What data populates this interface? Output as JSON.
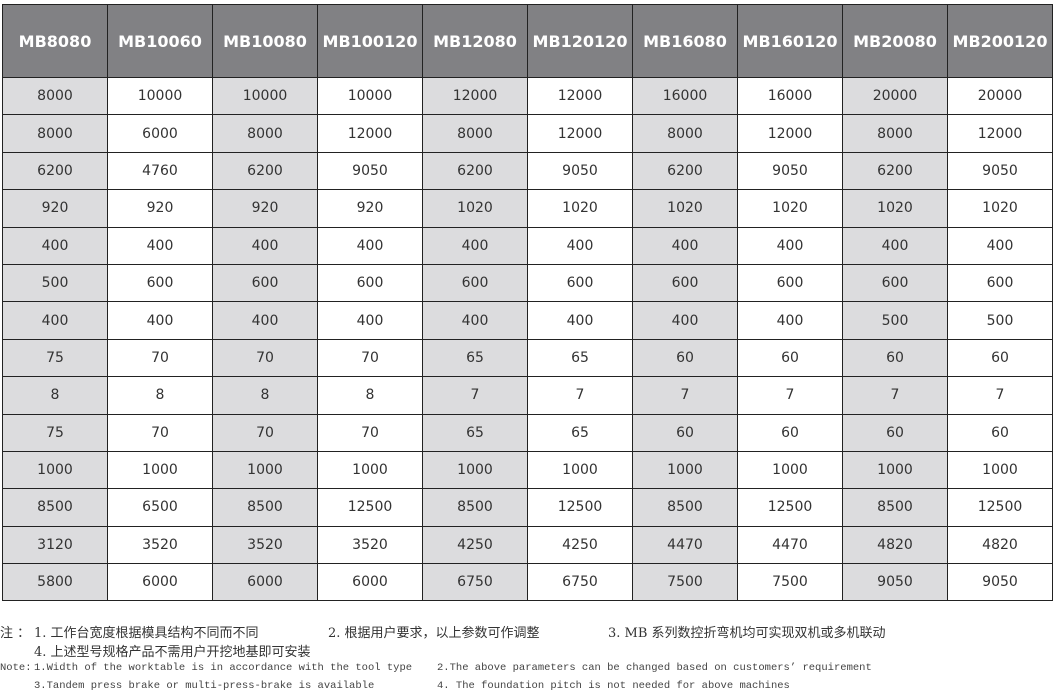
{
  "table": {
    "headers": [
      "MB8080",
      "MB10060",
      "MB10080",
      "MB100120",
      "MB12080",
      "MB120120",
      "MB16080",
      "MB160120",
      "MB20080",
      "MB200120"
    ],
    "rows": [
      [
        "8000",
        "10000",
        "10000",
        "10000",
        "12000",
        "12000",
        "16000",
        "16000",
        "20000",
        "20000"
      ],
      [
        "8000",
        "6000",
        "8000",
        "12000",
        "8000",
        "12000",
        "8000",
        "12000",
        "8000",
        "12000"
      ],
      [
        "6200",
        "4760",
        "6200",
        "9050",
        "6200",
        "9050",
        "6200",
        "9050",
        "6200",
        "9050"
      ],
      [
        "920",
        "920",
        "920",
        "920",
        "1020",
        "1020",
        "1020",
        "1020",
        "1020",
        "1020"
      ],
      [
        "400",
        "400",
        "400",
        "400",
        "400",
        "400",
        "400",
        "400",
        "400",
        "400"
      ],
      [
        "500",
        "600",
        "600",
        "600",
        "600",
        "600",
        "600",
        "600",
        "600",
        "600"
      ],
      [
        "400",
        "400",
        "400",
        "400",
        "400",
        "400",
        "400",
        "400",
        "500",
        "500"
      ],
      [
        "75",
        "70",
        "70",
        "70",
        "65",
        "65",
        "60",
        "60",
        "60",
        "60"
      ],
      [
        "8",
        "8",
        "8",
        "8",
        "7",
        "7",
        "7",
        "7",
        "7",
        "7"
      ],
      [
        "75",
        "70",
        "70",
        "70",
        "65",
        "65",
        "60",
        "60",
        "60",
        "60"
      ],
      [
        "1000",
        "1000",
        "1000",
        "1000",
        "1000",
        "1000",
        "1000",
        "1000",
        "1000",
        "1000"
      ],
      [
        "8500",
        "6500",
        "8500",
        "12500",
        "8500",
        "12500",
        "8500",
        "12500",
        "8500",
        "12500"
      ],
      [
        "3120",
        "3520",
        "3520",
        "3520",
        "4250",
        "4250",
        "4470",
        "4470",
        "4820",
        "4820"
      ],
      [
        "5800",
        "6000",
        "6000",
        "6000",
        "6750",
        "6750",
        "7500",
        "7500",
        "9050",
        "9050"
      ]
    ]
  },
  "notes": {
    "cn_prefix": "注 ：",
    "cn1": "1. 工作台宽度根据模具结构不同而不同",
    "cn2": "2. 根据用户要求，以上参数可作调整",
    "cn3": "3. MB 系列数控折弯机均可实现双机或多机联动",
    "cn4": "4. 上述型号规格产品不需用户开挖地基即可安装",
    "en_prefix": "Note:",
    "en1": "1.Width of the worktable is in accordance with the tool type",
    "en2": "2.The above parameters can be changed based on customers’ requirement",
    "en3": "3.Tandem press brake or multi-press-brake is available",
    "en4": "4. The foundation pitch is not needed for above machines"
  }
}
